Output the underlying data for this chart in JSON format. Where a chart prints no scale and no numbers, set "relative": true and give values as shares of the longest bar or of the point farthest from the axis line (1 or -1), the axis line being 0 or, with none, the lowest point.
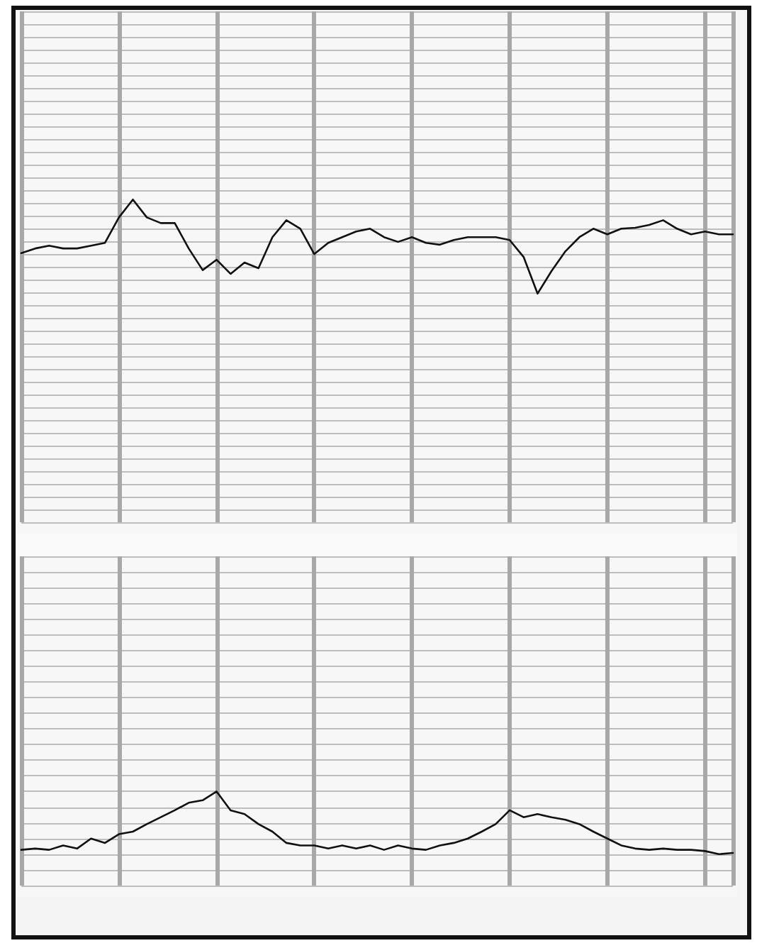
{
  "chart_data": [
    {
      "type": "line",
      "relative": true,
      "grid": true,
      "marker": "none",
      "line_style": "solid",
      "categories": [
        null,
        null,
        null,
        null,
        null,
        null,
        null,
        null,
        null,
        null,
        null,
        null,
        null,
        null,
        null,
        null,
        null,
        null,
        null,
        null,
        null,
        null,
        null,
        null,
        null,
        null,
        null,
        null,
        null,
        null,
        null,
        null,
        null,
        null,
        null,
        null,
        null,
        null,
        null,
        null,
        null,
        null,
        null,
        null,
        null,
        null,
        null,
        null,
        null,
        null,
        null,
        null
      ],
      "series": [
        {
          "color": "#111111",
          "values": [
            0.43,
            0.48,
            0.51,
            0.48,
            0.48,
            0.51,
            0.54,
            0.81,
            1,
            0.81,
            0.75,
            0.75,
            0.48,
            0.25,
            0.36,
            0.21,
            0.33,
            0.27,
            0.6,
            0.78,
            0.69,
            0.42,
            0.54,
            0.6,
            0.66,
            0.69,
            0.6,
            0.55,
            0.6,
            0.54,
            0.52,
            0.57,
            0.6,
            0.6,
            0.6,
            0.57,
            0.39,
            0,
            0.24,
            0.45,
            0.6,
            0.69,
            0.63,
            0.69,
            0.7,
            0.73,
            0.78,
            0.69,
            0.63,
            0.66,
            0.63,
            0.63
          ]
        }
      ]
    },
    {
      "type": "line",
      "relative": true,
      "grid": true,
      "marker": "none",
      "line_style": "solid",
      "categories": [
        null,
        null,
        null,
        null,
        null,
        null,
        null,
        null,
        null,
        null,
        null,
        null,
        null,
        null,
        null,
        null,
        null,
        null,
        null,
        null,
        null,
        null,
        null,
        null,
        null,
        null,
        null,
        null,
        null,
        null,
        null,
        null,
        null,
        null,
        null,
        null,
        null,
        null,
        null,
        null,
        null,
        null,
        null,
        null,
        null,
        null,
        null,
        null,
        null,
        null,
        null,
        null
      ],
      "series": [
        {
          "color": "#111111",
          "values": [
            0.07,
            0.09,
            0.07,
            0.14,
            0.09,
            0.25,
            0.18,
            0.32,
            0.36,
            0.48,
            0.59,
            0.7,
            0.82,
            0.86,
            1,
            0.7,
            0.64,
            0.48,
            0.36,
            0.18,
            0.14,
            0.14,
            0.09,
            0.14,
            0.09,
            0.14,
            0.07,
            0.14,
            0.09,
            0.07,
            0.14,
            0.18,
            0.25,
            0.36,
            0.48,
            0.7,
            0.59,
            0.64,
            0.59,
            0.55,
            0.48,
            0.36,
            0.25,
            0.14,
            0.09,
            0.07,
            0.09,
            0.07,
            0.07,
            0.05,
            0,
            0.02
          ]
        }
      ]
    }
  ]
}
